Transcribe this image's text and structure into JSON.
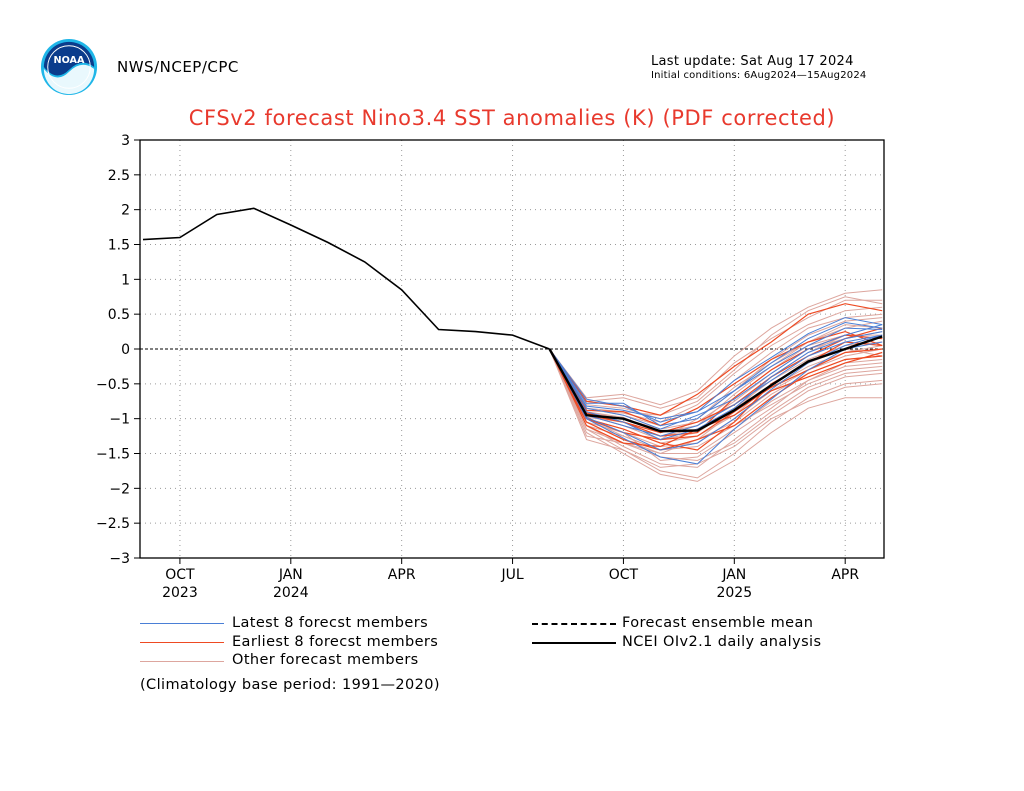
{
  "header": {
    "org": "NWS/NCEP/CPC",
    "last_update": "Last update: Sat Aug 17 2024",
    "initial_conditions": "Initial conditions: 6Aug2024—15Aug2024",
    "logo_text": "NOAA"
  },
  "colors": {
    "title": "#e8392d",
    "latest": "#4a7fd6",
    "earliest": "#ee4a22",
    "other": "#dda69e",
    "mean": "#000000",
    "analysis": "#000000"
  },
  "legend": {
    "latest": "Latest 8 forecst members",
    "earliest": "Earliest 8 forecst members",
    "other": "Other forecast members",
    "mean": "Forecast ensemble mean",
    "analysis": "NCEI OIv2.1 daily analysis"
  },
  "footnote": "(Climatology base period: 1991—2020)",
  "chart_data": {
    "type": "line",
    "title": "CFSv2 forecast Nino3.4 SST anomalies (K) (PDF corrected)",
    "xlabel": "",
    "ylabel": "",
    "ylim": [
      -3,
      3
    ],
    "xlim": [
      "2023-09",
      "2025-05"
    ],
    "yticks": [
      "3",
      "2.5",
      "2",
      "1.5",
      "1",
      "0.5",
      "0",
      "−0.5",
      "−1",
      "−1.5",
      "−2",
      "−2.5",
      "−3"
    ],
    "xticks": [
      {
        "label": "OCT",
        "year": "2023",
        "x": "2023-10"
      },
      {
        "label": "JAN",
        "year": "2024",
        "x": "2024-01"
      },
      {
        "label": "APR",
        "year": "",
        "x": "2024-04"
      },
      {
        "label": "JUL",
        "year": "",
        "x": "2024-07"
      },
      {
        "label": "OCT",
        "year": "",
        "x": "2024-10"
      },
      {
        "label": "JAN",
        "year": "2025",
        "x": "2025-01"
      },
      {
        "label": "APR",
        "year": "",
        "x": "2025-04"
      }
    ],
    "grid": true,
    "zero_line": true,
    "forecast_x": [
      "2024-08",
      "2024-09",
      "2024-10",
      "2024-11",
      "2024-12",
      "2025-01",
      "2025-02",
      "2025-03",
      "2025-04",
      "2025-05"
    ],
    "analysis": {
      "name": "NCEI OIv2.1 daily analysis",
      "x": [
        "2023-09",
        "2023-10",
        "2023-11",
        "2023-12",
        "2024-01",
        "2024-02",
        "2024-03",
        "2024-04",
        "2024-05",
        "2024-06",
        "2024-07",
        "2024-08"
      ],
      "values": [
        1.57,
        1.6,
        1.93,
        2.02,
        1.78,
        1.53,
        1.25,
        0.85,
        0.28,
        0.25,
        0.2,
        0.0
      ]
    },
    "mean": {
      "name": "Forecast ensemble mean",
      "values": [
        0.0,
        -0.95,
        -1.0,
        -1.18,
        -1.17,
        -0.88,
        -0.52,
        -0.18,
        0.0,
        0.18
      ]
    },
    "latest_members": [
      [
        0.0,
        -0.72,
        -0.82,
        -1.05,
        -0.9,
        -0.45,
        -0.12,
        0.22,
        0.45,
        0.35
      ],
      [
        0.0,
        -0.78,
        -0.78,
        -1.1,
        -1.0,
        -0.6,
        -0.2,
        0.15,
        0.38,
        0.3
      ],
      [
        0.0,
        -0.85,
        -0.95,
        -1.15,
        -0.95,
        -0.72,
        -0.35,
        0.0,
        0.2,
        0.35
      ],
      [
        0.0,
        -0.9,
        -1.05,
        -1.3,
        -1.15,
        -0.85,
        -0.4,
        -0.05,
        0.15,
        0.25
      ],
      [
        0.0,
        -0.98,
        -1.2,
        -1.45,
        -1.35,
        -1.0,
        -0.58,
        -0.2,
        0.05,
        0.2
      ],
      [
        0.0,
        -1.0,
        -1.28,
        -1.55,
        -1.65,
        -1.15,
        -0.72,
        -0.3,
        0.0,
        0.1
      ],
      [
        0.0,
        -0.82,
        -0.88,
        -1.0,
        -0.9,
        -0.6,
        -0.25,
        0.05,
        0.3,
        0.28
      ],
      [
        0.0,
        -0.95,
        -1.1,
        -1.25,
        -1.1,
        -0.8,
        -0.45,
        -0.1,
        0.1,
        0.2
      ]
    ],
    "earliest_members": [
      [
        0.0,
        -0.75,
        -0.82,
        -0.95,
        -0.65,
        -0.25,
        0.1,
        0.5,
        0.65,
        0.55
      ],
      [
        0.0,
        -0.88,
        -0.9,
        -1.1,
        -0.85,
        -0.5,
        -0.15,
        0.1,
        0.25,
        0.05
      ],
      [
        0.0,
        -1.0,
        -1.2,
        -1.3,
        -1.25,
        -0.9,
        -0.55,
        -0.3,
        -0.05,
        0.0
      ],
      [
        0.0,
        -1.05,
        -1.3,
        -1.45,
        -1.3,
        -1.1,
        -0.7,
        -0.35,
        -0.15,
        -0.1
      ],
      [
        0.0,
        -0.92,
        -1.05,
        -1.2,
        -1.05,
        -0.8,
        -0.4,
        -0.1,
        0.15,
        0.3
      ],
      [
        0.0,
        -1.1,
        -1.35,
        -1.4,
        -1.15,
        -0.95,
        -0.6,
        -0.4,
        -0.2,
        -0.05
      ],
      [
        0.0,
        -0.95,
        -1.05,
        -1.25,
        -1.2,
        -0.7,
        -0.3,
        0.0,
        0.2,
        0.15
      ],
      [
        0.0,
        -1.0,
        -1.15,
        -1.35,
        -1.45,
        -1.05,
        -0.5,
        -0.2,
        0.1,
        0.05
      ]
    ],
    "other_members": [
      [
        0.0,
        -0.7,
        -0.65,
        -0.8,
        -0.6,
        -0.1,
        0.3,
        0.6,
        0.8,
        0.85
      ],
      [
        0.0,
        -0.75,
        -0.7,
        -0.85,
        -0.7,
        -0.2,
        0.15,
        0.45,
        0.7,
        0.7
      ],
      [
        0.0,
        -0.8,
        -0.85,
        -1.0,
        -0.9,
        -0.45,
        -0.05,
        0.3,
        0.45,
        0.5
      ],
      [
        0.0,
        -0.85,
        -0.95,
        -1.1,
        -1.0,
        -0.55,
        -0.2,
        0.1,
        0.3,
        0.4
      ],
      [
        0.0,
        -0.9,
        -1.0,
        -1.2,
        -1.1,
        -0.75,
        -0.35,
        0.0,
        0.15,
        0.25
      ],
      [
        0.0,
        -0.95,
        -1.1,
        -1.3,
        -1.2,
        -0.85,
        -0.45,
        -0.15,
        0.05,
        0.1
      ],
      [
        0.0,
        -1.0,
        -1.2,
        -1.4,
        -1.35,
        -1.0,
        -0.6,
        -0.3,
        -0.1,
        0.0
      ],
      [
        0.0,
        -1.05,
        -1.3,
        -1.5,
        -1.5,
        -1.15,
        -0.75,
        -0.45,
        -0.25,
        -0.2
      ],
      [
        0.0,
        -1.1,
        -1.4,
        -1.65,
        -1.7,
        -1.3,
        -0.9,
        -0.55,
        -0.35,
        -0.3
      ],
      [
        0.0,
        -1.15,
        -1.45,
        -1.75,
        -1.85,
        -1.5,
        -1.05,
        -0.7,
        -0.5,
        -0.45
      ],
      [
        0.0,
        -1.2,
        -1.5,
        -1.8,
        -1.9,
        -1.6,
        -1.2,
        -0.85,
        -0.7,
        -0.7
      ],
      [
        0.0,
        -1.25,
        -1.35,
        -1.55,
        -1.6,
        -1.35,
        -0.95,
        -0.6,
        -0.4,
        -0.35
      ],
      [
        0.0,
        -1.0,
        -1.15,
        -1.35,
        -1.25,
        -0.95,
        -0.5,
        -0.2,
        0.0,
        -0.1
      ],
      [
        0.0,
        -0.92,
        -1.0,
        -1.15,
        -1.05,
        -0.7,
        -0.3,
        0.05,
        0.2,
        0.15
      ],
      [
        0.0,
        -0.88,
        -0.92,
        -1.05,
        -0.8,
        -0.35,
        0.05,
        0.35,
        0.55,
        0.6
      ],
      [
        0.0,
        -1.1,
        -1.25,
        -1.45,
        -1.4,
        -1.1,
        -0.8,
        -0.5,
        -0.3,
        -0.25
      ],
      [
        0.0,
        -0.98,
        -1.05,
        -1.25,
        -1.15,
        -0.85,
        -0.55,
        -0.25,
        -0.05,
        0.05
      ],
      [
        0.0,
        -1.05,
        -1.2,
        -1.6,
        -1.55,
        -1.2,
        -0.85,
        -0.45,
        -0.2,
        -0.15
      ],
      [
        0.0,
        -0.85,
        -0.9,
        -0.95,
        -0.75,
        -0.3,
        0.2,
        0.55,
        0.75,
        0.65
      ],
      [
        0.0,
        -1.15,
        -1.35,
        -1.5,
        -1.3,
        -1.05,
        -0.65,
        -0.35,
        -0.15,
        -0.1
      ],
      [
        0.0,
        -0.95,
        -1.1,
        -1.3,
        -1.0,
        -0.6,
        -0.15,
        0.2,
        0.4,
        0.45
      ],
      [
        0.0,
        -1.0,
        -1.25,
        -1.45,
        -1.3,
        -0.9,
        -0.4,
        -0.05,
        0.2,
        0.2
      ],
      [
        0.0,
        -1.3,
        -1.45,
        -1.7,
        -1.65,
        -1.4,
        -1.0,
        -0.75,
        -0.55,
        -0.5
      ],
      [
        0.0,
        -0.9,
        -0.98,
        -1.2,
        -1.1,
        -0.65,
        -0.25,
        0.1,
        0.35,
        0.3
      ]
    ]
  }
}
